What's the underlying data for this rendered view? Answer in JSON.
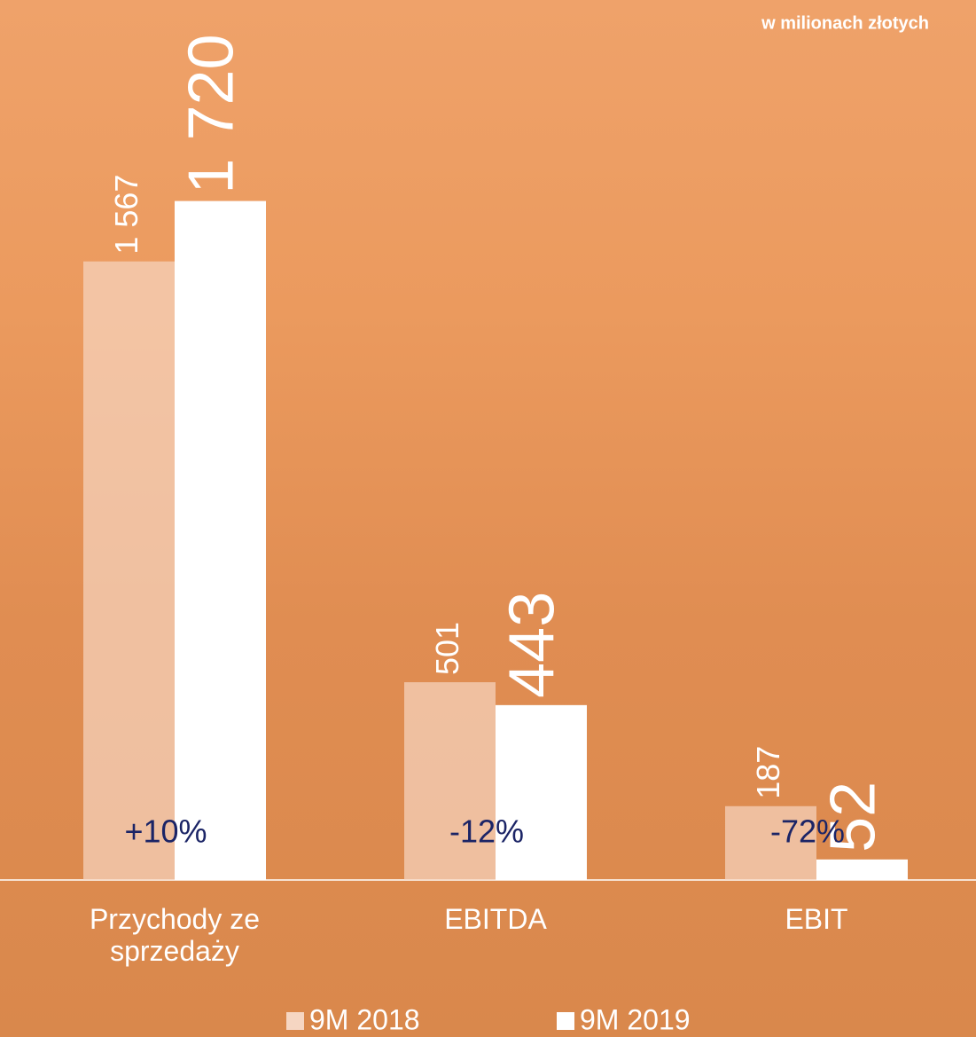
{
  "chart_data": {
    "type": "bar",
    "subtitle": "w milionach złotych",
    "categories": [
      "Przychody ze sprzedaży",
      "EBITDA",
      "EBIT"
    ],
    "series": [
      {
        "name": "9M 2018",
        "color": "#f6d6c2",
        "values": [
          1567,
          501,
          187
        ],
        "value_labels": [
          "1 567",
          "501",
          "187"
        ]
      },
      {
        "name": "9M 2019",
        "color": "#ffffff",
        "values": [
          1720,
          443,
          52
        ],
        "value_labels": [
          "1 720",
          "443",
          "52"
        ]
      }
    ],
    "annotations": [
      "+10%",
      "-12%",
      "-72%"
    ],
    "annotation_color": "#1b2466",
    "ylim": [
      0,
      2000
    ]
  }
}
